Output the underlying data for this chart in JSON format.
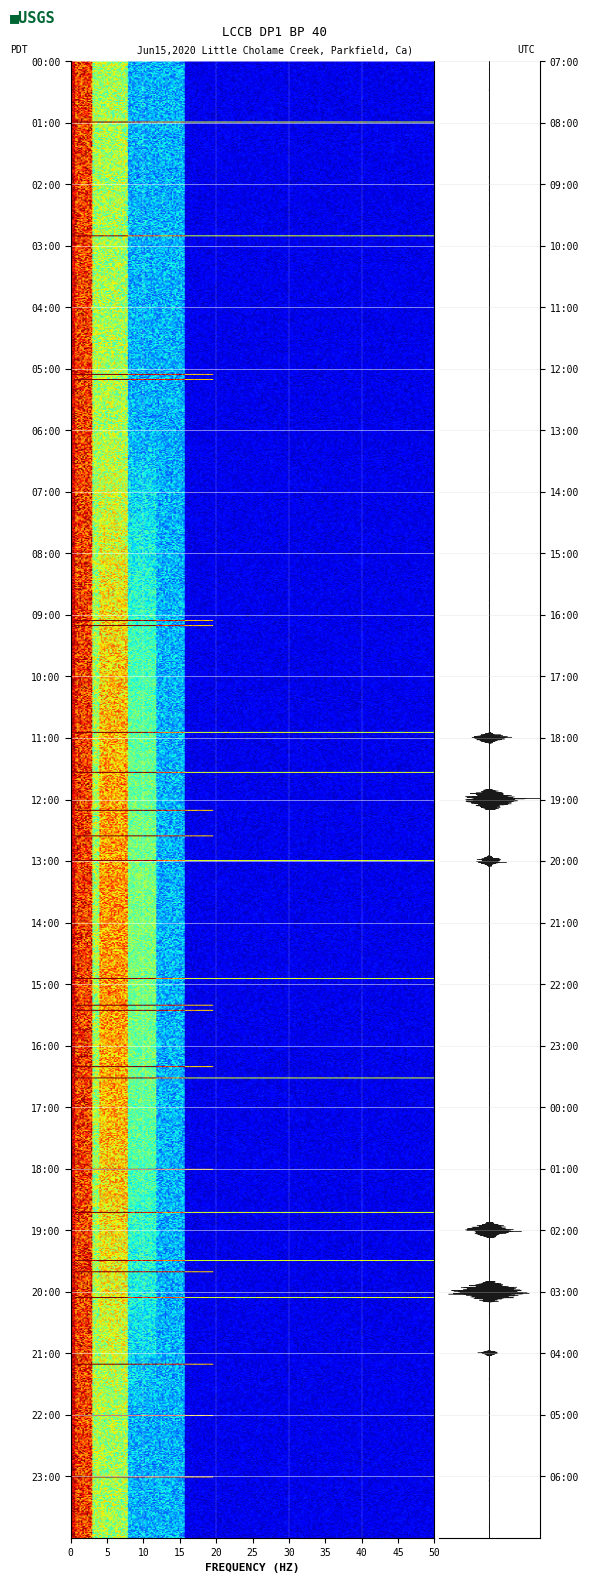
{
  "title_line1": "LCCB DP1 BP 40",
  "title_line2": "PDT   Jun15,2020Little Cholame Creek, Parkfield, Ca)     UTC",
  "xlabel": "FREQUENCY (HZ)",
  "left_label": "PDT",
  "right_label": "UTC",
  "freq_min": 0,
  "freq_max": 50,
  "freq_ticks": [
    0,
    5,
    10,
    15,
    20,
    25,
    30,
    35,
    40,
    45,
    50
  ],
  "pdt_times": [
    "00:00",
    "01:00",
    "02:00",
    "03:00",
    "04:00",
    "05:00",
    "06:00",
    "07:00",
    "08:00",
    "09:00",
    "10:00",
    "11:00",
    "12:00",
    "13:00",
    "14:00",
    "15:00",
    "16:00",
    "17:00",
    "18:00",
    "19:00",
    "20:00",
    "21:00",
    "22:00",
    "23:00"
  ],
  "utc_times": [
    "07:00",
    "08:00",
    "09:00",
    "10:00",
    "11:00",
    "12:00",
    "13:00",
    "14:00",
    "15:00",
    "16:00",
    "17:00",
    "18:00",
    "19:00",
    "20:00",
    "21:00",
    "22:00",
    "23:00",
    "00:00",
    "01:00",
    "02:00",
    "03:00",
    "04:00",
    "05:00",
    "06:00"
  ],
  "background_color": "#ffffff",
  "spectrogram_bg": "#000080",
  "grid_color": "#ffffff",
  "text_color": "#000000",
  "usgs_green": "#006633",
  "fig_width": 5.52,
  "fig_height": 16.13
}
